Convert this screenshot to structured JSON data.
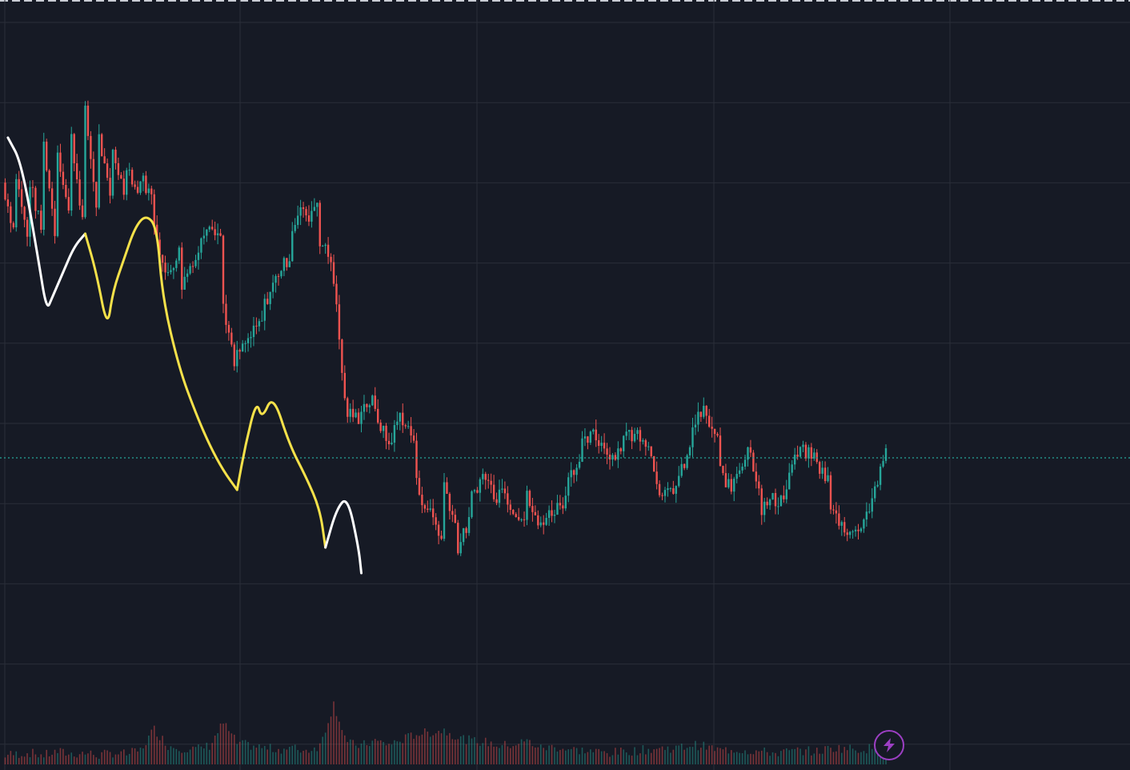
{
  "colors": {
    "background": "#161a25",
    "grid": "#2a2e39",
    "up": "#26a69a",
    "down": "#ef5350",
    "price_line": "#26a69a",
    "drawing_white": "#ffffff",
    "drawing_yellow": "#f5e14a",
    "lightning_accent": "#9c3fc3"
  },
  "icons": {
    "lightning_button": "lightning-icon"
  },
  "chart_data": {
    "type": "candlestick",
    "title": "",
    "xlabel": "",
    "ylabel": "",
    "ylim": [
      0,
      100
    ],
    "grid": true,
    "legend": "none",
    "current_price": 36.0,
    "volume_max": 100,
    "anchors": [
      [
        0,
        79,
        70,
        6
      ],
      [
        5,
        80,
        68,
        7
      ],
      [
        10,
        79,
        70,
        8
      ],
      [
        15,
        85,
        68,
        6
      ],
      [
        20,
        84,
        72,
        9
      ],
      [
        25,
        86,
        70,
        7
      ],
      [
        30,
        90,
        72,
        8
      ],
      [
        35,
        86,
        74,
        6
      ],
      [
        40,
        84,
        76,
        8
      ],
      [
        45,
        82,
        76,
        7
      ],
      [
        50,
        80,
        76,
        10
      ],
      [
        55,
        73,
        62,
        28
      ],
      [
        60,
        65,
        69,
        14
      ],
      [
        65,
        63,
        68,
        12
      ],
      [
        70,
        67,
        74,
        11
      ],
      [
        75,
        73,
        70,
        14
      ],
      [
        80,
        60,
        48,
        33
      ],
      [
        85,
        52,
        55,
        16
      ],
      [
        90,
        55,
        58,
        14
      ],
      [
        95,
        60,
        65,
        12
      ],
      [
        100,
        65,
        68,
        11
      ],
      [
        105,
        72,
        76,
        12
      ],
      [
        110,
        73,
        77,
        10
      ],
      [
        115,
        70,
        66,
        14
      ],
      [
        120,
        64,
        40,
        49
      ],
      [
        125,
        43,
        42,
        16
      ],
      [
        130,
        44,
        45,
        14
      ],
      [
        135,
        43,
        38,
        18
      ],
      [
        140,
        38,
        44,
        15
      ],
      [
        145,
        42,
        38,
        19
      ],
      [
        150,
        32,
        26,
        24
      ],
      [
        155,
        28,
        22,
        25
      ],
      [
        160,
        32,
        24,
        27
      ],
      [
        165,
        22,
        27,
        21
      ],
      [
        170,
        30,
        34,
        18
      ],
      [
        175,
        33,
        29,
        17
      ],
      [
        180,
        32,
        28,
        14
      ],
      [
        185,
        28,
        26,
        15
      ],
      [
        190,
        30,
        24,
        18
      ],
      [
        195,
        26,
        28,
        12
      ],
      [
        200,
        28,
        30,
        13
      ],
      [
        205,
        34,
        35,
        11
      ],
      [
        210,
        38,
        40,
        10
      ],
      [
        215,
        39,
        37,
        9
      ],
      [
        220,
        36,
        38,
        8
      ],
      [
        225,
        40,
        39,
        9
      ],
      [
        230,
        40,
        38,
        10
      ],
      [
        235,
        36,
        28,
        11
      ],
      [
        240,
        30,
        32,
        12
      ],
      [
        245,
        33,
        38,
        12
      ],
      [
        250,
        41,
        44,
        15
      ],
      [
        255,
        42,
        38,
        13
      ],
      [
        260,
        34,
        30,
        10
      ],
      [
        265,
        33,
        37,
        11
      ],
      [
        270,
        38,
        30,
        10
      ],
      [
        275,
        28,
        30,
        9
      ],
      [
        280,
        29,
        31,
        8
      ],
      [
        285,
        34,
        38,
        9
      ],
      [
        290,
        37,
        36,
        10
      ],
      [
        295,
        35,
        32,
        9
      ],
      [
        300,
        28,
        25,
        12
      ],
      [
        305,
        25,
        24,
        12
      ],
      [
        310,
        25,
        29,
        11
      ],
      [
        315,
        30,
        36,
        12
      ],
      [
        320,
        36,
        37.5,
        10
      ]
    ],
    "drawings": {
      "white_1": [
        [
          2,
          86
        ],
        [
          7,
          82
        ],
        [
          13,
          67
        ],
        [
          16,
          59
        ],
        [
          18,
          61
        ],
        [
          22,
          65
        ],
        [
          26,
          69
        ],
        [
          30,
          71
        ]
      ],
      "yellow_1": [
        [
          30,
          71
        ],
        [
          34,
          65
        ],
        [
          38,
          56
        ],
        [
          40,
          62
        ],
        [
          44,
          67
        ],
        [
          48,
          72
        ],
        [
          52,
          74
        ],
        [
          56,
          72
        ],
        [
          58,
          61
        ],
        [
          64,
          50
        ],
        [
          70,
          43
        ],
        [
          75,
          38
        ],
        [
          80,
          34
        ],
        [
          85,
          31
        ]
      ],
      "yellow_2": [
        [
          85,
          31
        ],
        [
          88,
          38
        ],
        [
          92,
          45
        ],
        [
          94,
          42
        ],
        [
          98,
          46
        ],
        [
          104,
          38
        ],
        [
          110,
          33
        ],
        [
          115,
          28
        ],
        [
          117,
          22
        ]
      ],
      "white_2": [
        [
          117,
          22
        ],
        [
          121,
          28
        ],
        [
          125,
          30
        ],
        [
          129,
          22
        ],
        [
          130,
          18
        ]
      ]
    }
  }
}
